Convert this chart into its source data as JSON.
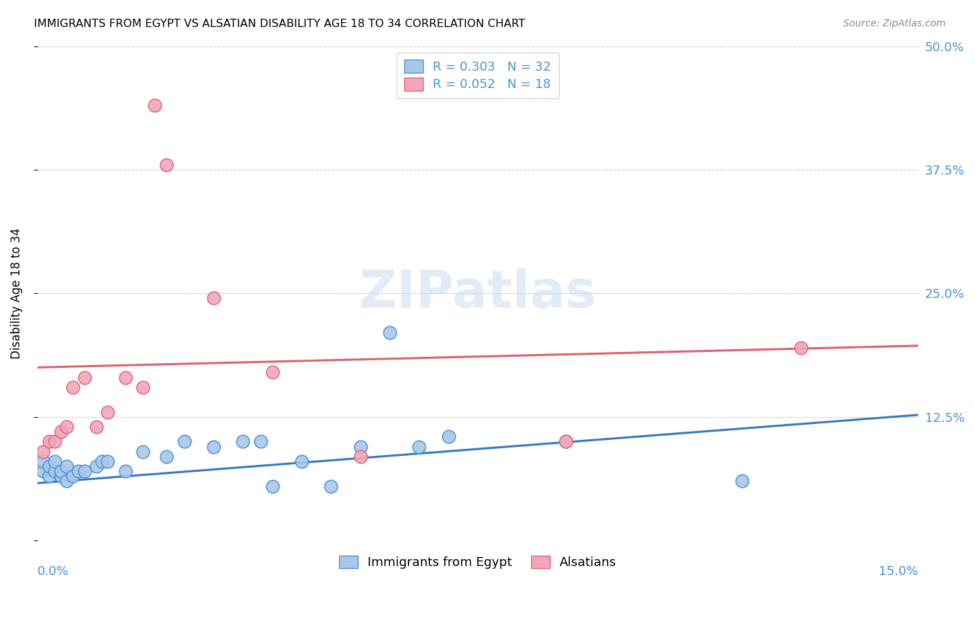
{
  "title": "IMMIGRANTS FROM EGYPT VS ALSATIAN DISABILITY AGE 18 TO 34 CORRELATION CHART",
  "source": "Source: ZipAtlas.com",
  "ylabel": "Disability Age 18 to 34",
  "ytick_values": [
    0.0,
    0.125,
    0.25,
    0.375,
    0.5
  ],
  "xlim": [
    0.0,
    0.15
  ],
  "ylim": [
    0.0,
    0.5
  ],
  "watermark_text": "ZIPatlas",
  "legend_bottom": [
    "Immigrants from Egypt",
    "Alsatians"
  ],
  "blue_color": "#4a90d9",
  "pink_color": "#e8607a",
  "blue_scatter_face": "#a8c8e8",
  "pink_scatter_face": "#f0a8b8",
  "blue_line_color": "#3a78c0",
  "pink_line_color": "#e06070",
  "egypt_x": [
    0.001,
    0.001,
    0.002,
    0.002,
    0.003,
    0.003,
    0.004,
    0.004,
    0.005,
    0.005,
    0.006,
    0.007,
    0.008,
    0.01,
    0.011,
    0.012,
    0.015,
    0.018,
    0.022,
    0.025,
    0.03,
    0.035,
    0.038,
    0.04,
    0.045,
    0.05,
    0.055,
    0.06,
    0.065,
    0.07,
    0.09,
    0.12
  ],
  "egypt_y": [
    0.07,
    0.08,
    0.065,
    0.075,
    0.07,
    0.08,
    0.065,
    0.07,
    0.06,
    0.075,
    0.065,
    0.07,
    0.07,
    0.075,
    0.08,
    0.08,
    0.07,
    0.09,
    0.085,
    0.1,
    0.095,
    0.1,
    0.1,
    0.055,
    0.08,
    0.055,
    0.095,
    0.21,
    0.095,
    0.105,
    0.1,
    0.06
  ],
  "alsatian_x": [
    0.001,
    0.002,
    0.003,
    0.004,
    0.005,
    0.006,
    0.008,
    0.01,
    0.012,
    0.015,
    0.018,
    0.02,
    0.022,
    0.03,
    0.04,
    0.055,
    0.09,
    0.13
  ],
  "alsatian_y": [
    0.09,
    0.1,
    0.1,
    0.11,
    0.115,
    0.155,
    0.165,
    0.115,
    0.13,
    0.165,
    0.155,
    0.44,
    0.38,
    0.245,
    0.17,
    0.085,
    0.1,
    0.195
  ]
}
